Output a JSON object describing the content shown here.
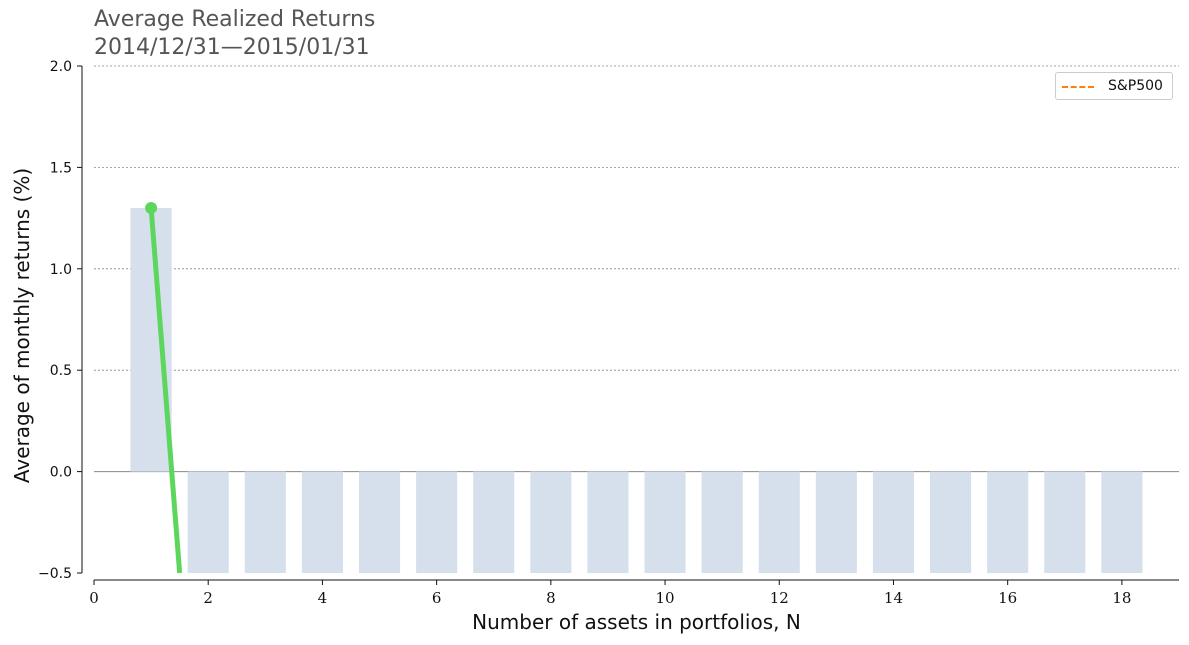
{
  "chart_data": {
    "type": "bar",
    "title_lines": [
      "Average Realized Returns",
      "2014/12/31—2015/01/31"
    ],
    "xlabel": "Number of assets in portfolios, N",
    "ylabel": "Average of monthly returns (%)",
    "xlim": [
      0,
      19
    ],
    "ylim": [
      -0.5,
      2.0
    ],
    "x_ticks": [
      0,
      2,
      4,
      6,
      8,
      10,
      12,
      14,
      16,
      18
    ],
    "y_ticks": [
      -0.5,
      0.0,
      0.5,
      1.0,
      1.5,
      2.0
    ],
    "y_tick_labels": [
      "−0.5",
      "0.0",
      "0.5",
      "1.0",
      "1.5",
      "2.0"
    ],
    "grid": "horizontal dashed",
    "legend_position": "top-right",
    "bars": {
      "x": [
        1,
        2,
        3,
        4,
        5,
        6,
        7,
        8,
        9,
        10,
        11,
        12,
        13,
        14,
        15,
        16,
        17,
        18
      ],
      "values": [
        1.3,
        -0.5,
        -0.5,
        -0.5,
        -0.5,
        -0.5,
        -0.5,
        -0.5,
        -0.5,
        -0.5,
        -0.5,
        -0.5,
        -0.5,
        -0.5,
        -0.5,
        -0.5,
        -0.5,
        -0.5
      ],
      "color": "#d6e0ec"
    },
    "line": {
      "x": [
        1,
        1.5
      ],
      "values": [
        1.3,
        -0.5
      ],
      "color": "#5cd65c"
    },
    "series": [
      {
        "name": "S&P500",
        "color": "#ff7f0e",
        "style": "dashed",
        "values": []
      }
    ]
  }
}
